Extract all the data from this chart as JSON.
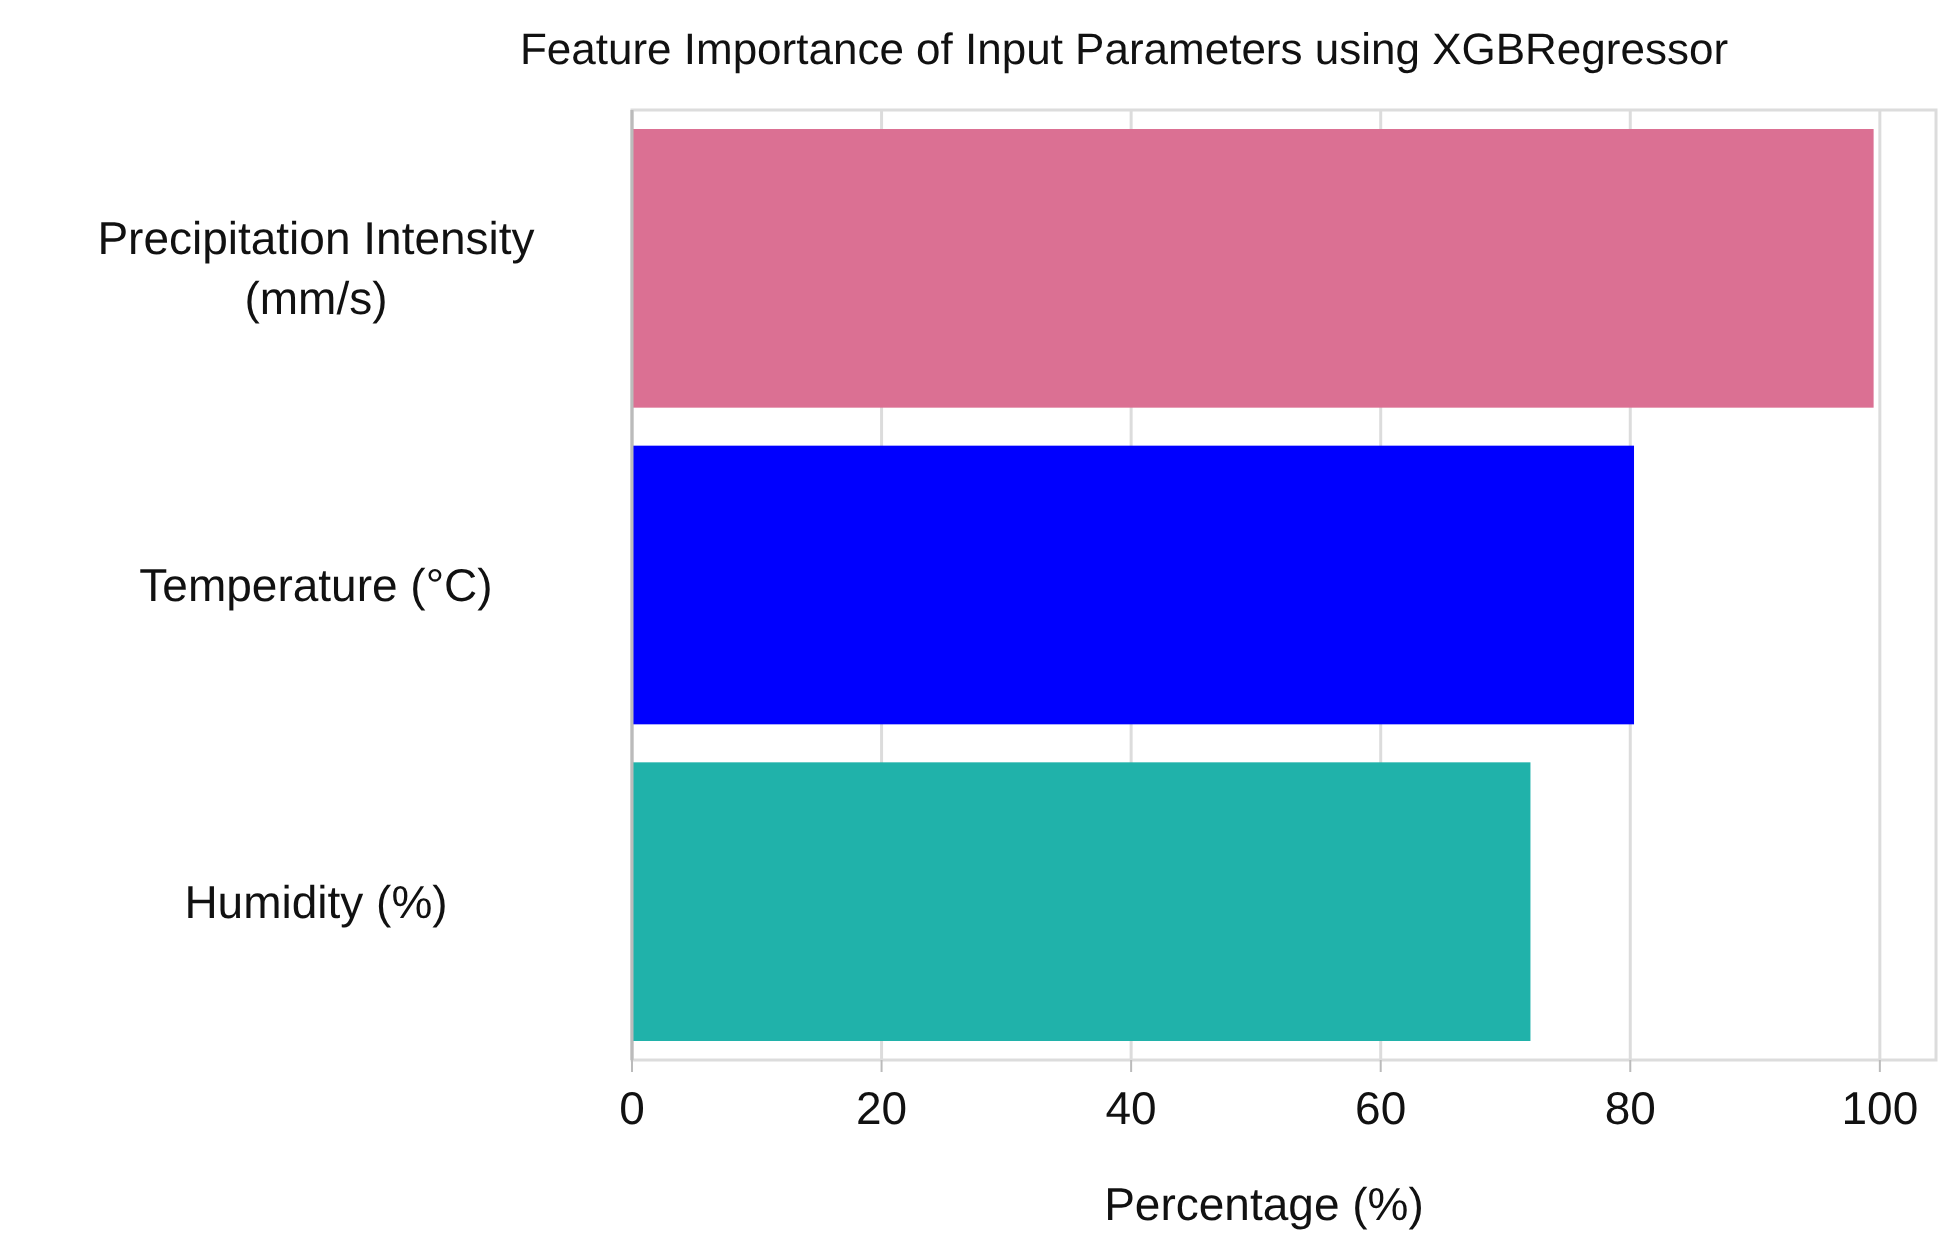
{
  "chart_data": {
    "type": "bar",
    "orientation": "horizontal",
    "title": "Feature Importance of Input Parameters using XGBRegressor",
    "xlabel": "Percentage (%)",
    "categories": [
      "Precipitation Intensity (mm/s)",
      "Temperature (°C)",
      "Humidity (%)"
    ],
    "values": [
      99.5,
      80.3,
      72
    ],
    "colors": [
      "#db7093",
      "#0000ff",
      "#20b2aa"
    ],
    "xlim": [
      0,
      104.5
    ],
    "xticks": [
      0,
      20,
      40,
      60,
      80,
      100
    ],
    "grid": "x"
  }
}
